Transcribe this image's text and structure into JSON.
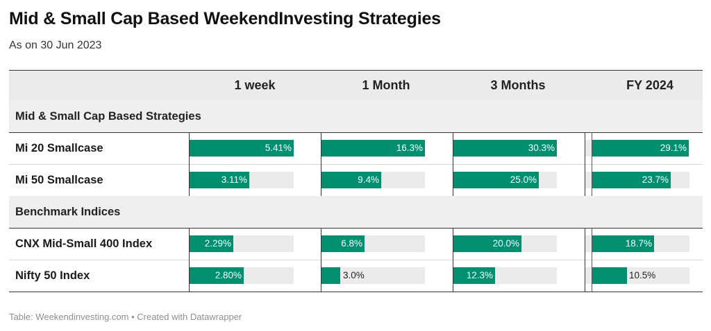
{
  "title": "Mid & Small Cap Based WeekendInvesting Strategies",
  "subtitle": "As on 30 Jun 2023",
  "footer": "Table: Weekendinvesting.com • Created with Datawrapper",
  "columns": [
    "1 week",
    "1 Month",
    "3 Months",
    "FY 2024"
  ],
  "colors": {
    "bar": "#00906f",
    "track": "#ebebeb",
    "header_bg": "#ebebeb"
  },
  "chart_data": {
    "type": "table",
    "columns": [
      "1 week",
      "1 Month",
      "3 Months",
      "FY 2024"
    ],
    "column_max": [
      5.41,
      16.3,
      30.3,
      29.1
    ],
    "groups": [
      {
        "name": "Mid & Small Cap Based Strategies",
        "rows": [
          {
            "name": "Mi 20 Smallcase",
            "values": [
              5.41,
              16.3,
              30.3,
              29.1
            ],
            "labels": [
              "5.41%",
              "16.3%",
              "30.3%",
              "29.1%"
            ]
          },
          {
            "name": "Mi 50 Smallcase",
            "values": [
              3.11,
              9.4,
              25.0,
              23.7
            ],
            "labels": [
              "3.11%",
              "9.4%",
              "25.0%",
              "23.7%"
            ]
          }
        ]
      },
      {
        "name": "Benchmark Indices",
        "rows": [
          {
            "name": "CNX Mid-Small 400 Index",
            "values": [
              2.29,
              6.8,
              20.0,
              18.7
            ],
            "labels": [
              "2.29%",
              "6.8%",
              "20.0%",
              "18.7%"
            ]
          },
          {
            "name": "Nifty 50 Index",
            "values": [
              2.8,
              3.0,
              12.3,
              10.5
            ],
            "labels": [
              "2.80%",
              "3.0%",
              "12.3%",
              "10.5%"
            ]
          }
        ]
      }
    ]
  }
}
